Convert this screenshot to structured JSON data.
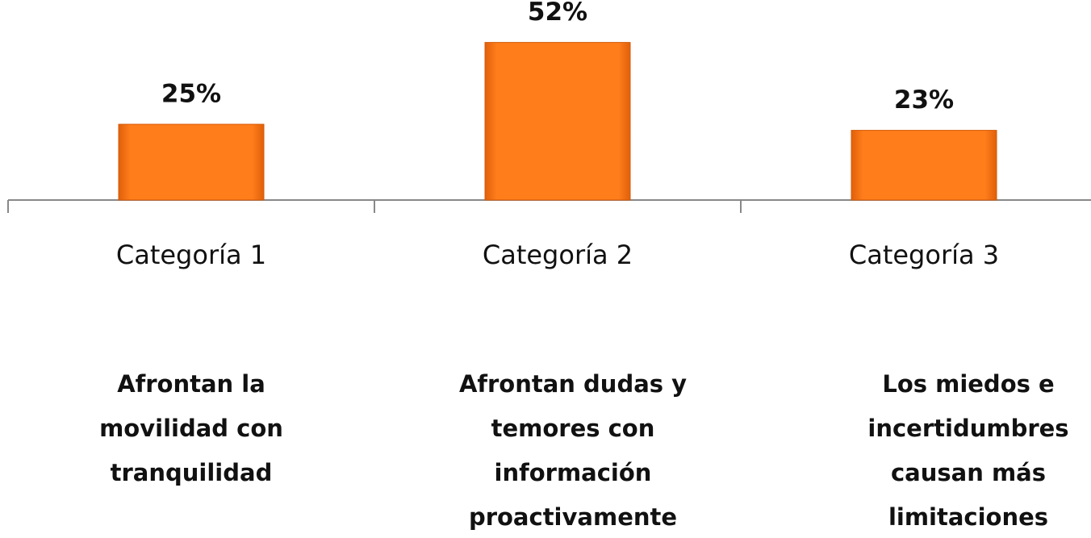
{
  "chart_data": {
    "type": "bar",
    "categories": [
      "Categoría 1",
      "Categoría 2",
      "Categoría 3"
    ],
    "values": [
      25,
      52,
      23
    ],
    "value_labels": [
      "25%",
      "52%",
      "23%"
    ],
    "color": "#f97410",
    "ylim": [
      0,
      66
    ],
    "annotations": [
      [
        "Afrontan la",
        "movilidad con",
        "tranquilidad"
      ],
      [
        "Afrontan dudas y",
        "temores con",
        "información",
        "proactivamente"
      ],
      [
        "Los miedos e",
        "incertidumbres",
        "causan más",
        "limitaciones"
      ]
    ]
  }
}
